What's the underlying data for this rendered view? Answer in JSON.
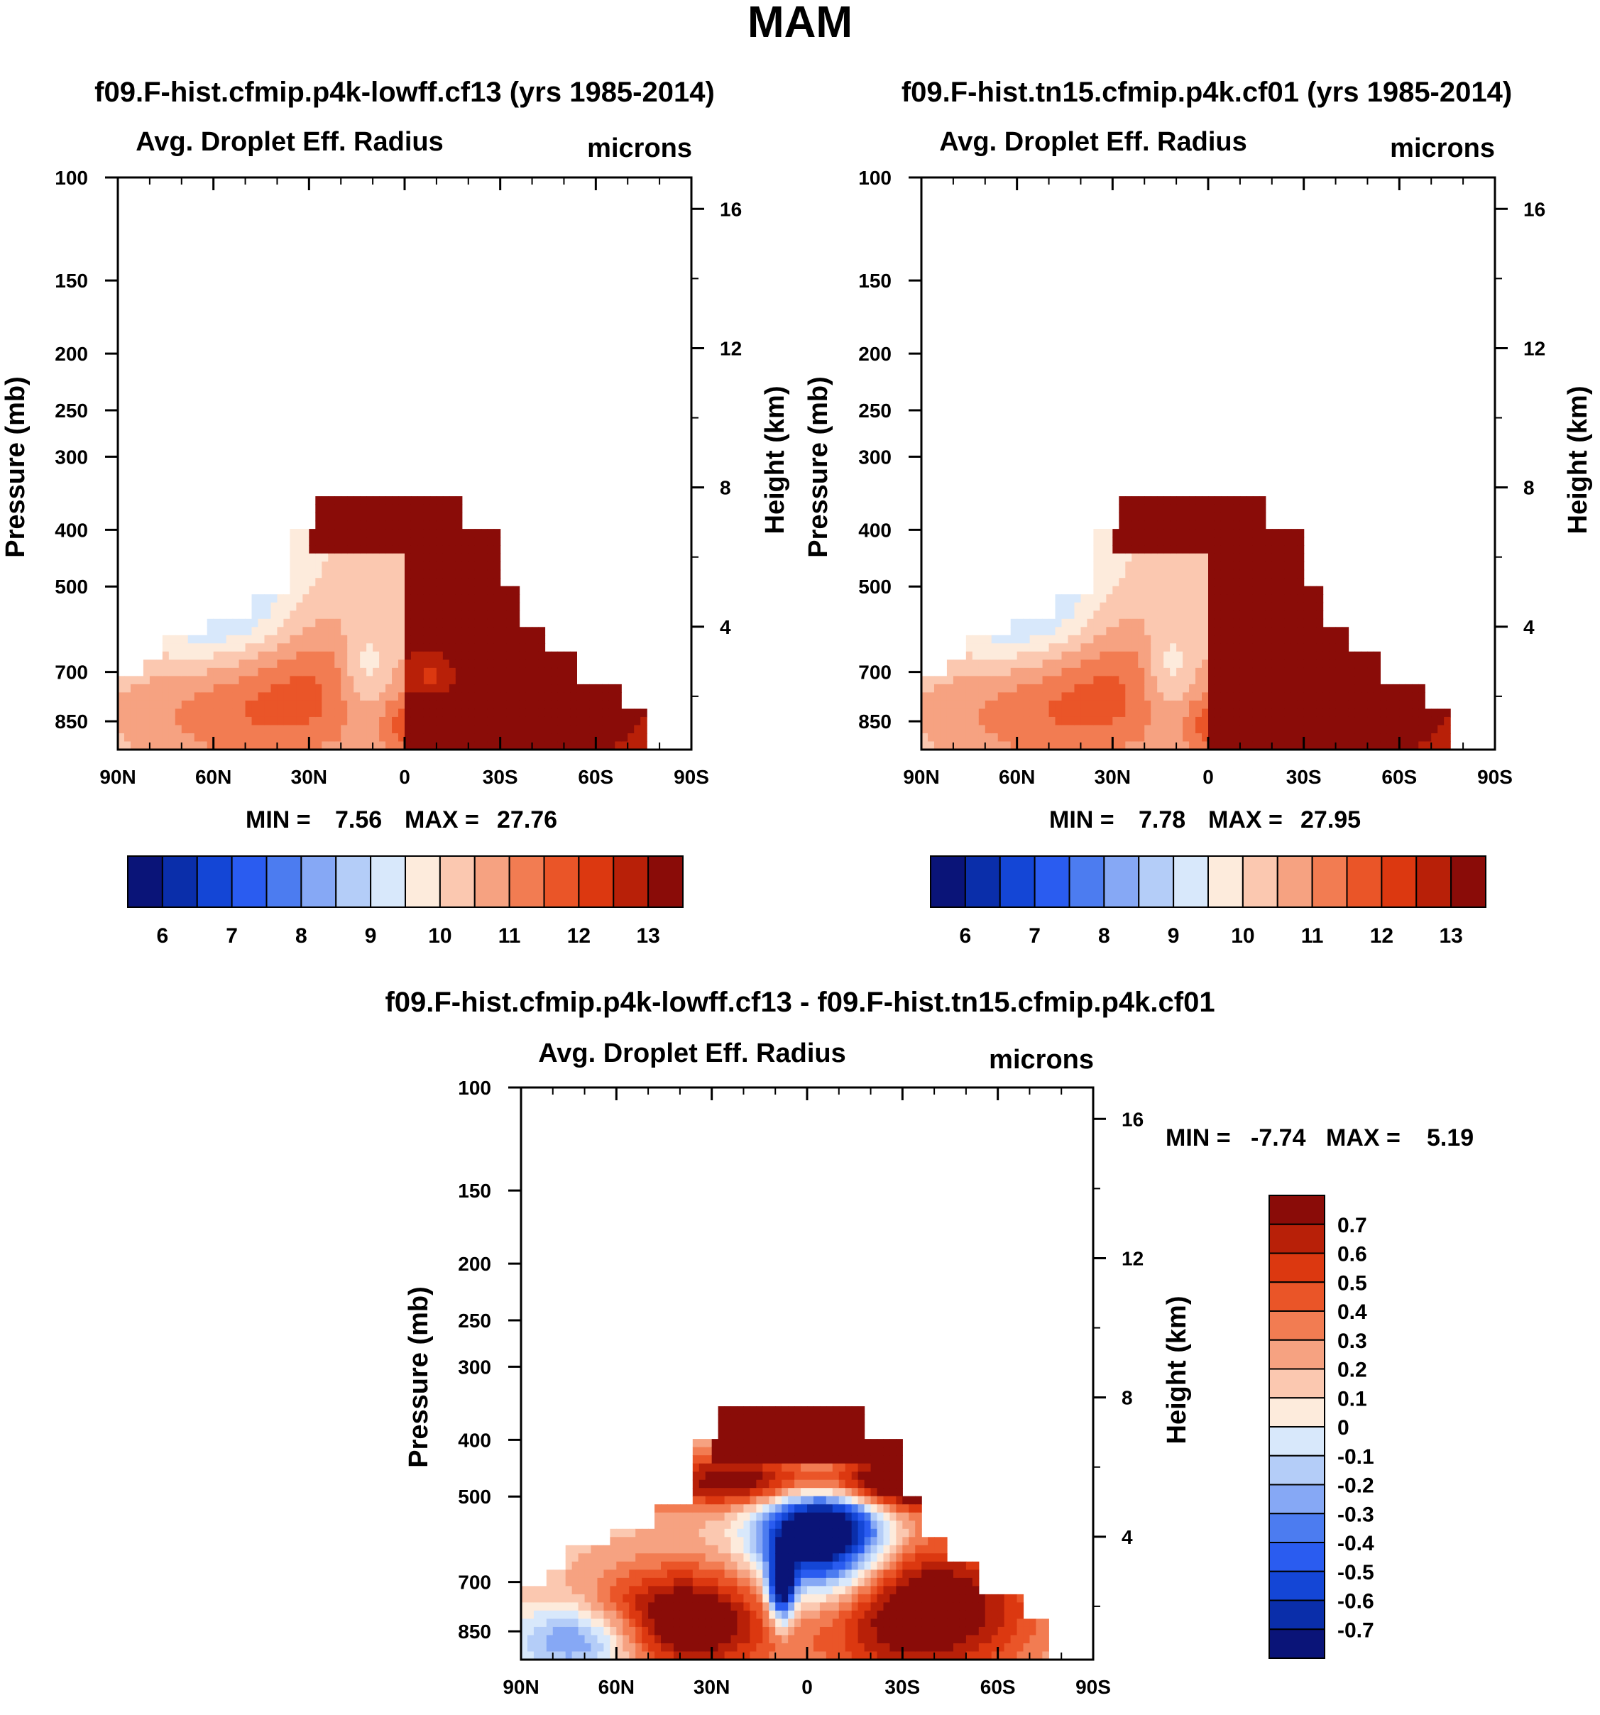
{
  "figure_title": "MAM",
  "chart_data": [
    {
      "type": "heatmap",
      "title": "f09.F-hist.cfmip.p4k-lowff.cf13 (yrs 1985-2014)",
      "subtitle": "Avg. Droplet Eff. Radius",
      "units": "microns",
      "ylabel": "Pressure (mb)",
      "ylabel_right": "Height (km)",
      "x_ticks": [
        "90N",
        "60N",
        "30N",
        "0",
        "30S",
        "60S",
        "90S"
      ],
      "y_ticks": [
        "100",
        "150",
        "200",
        "250",
        "300",
        "400",
        "500",
        "700",
        "850"
      ],
      "y_ticks_right": [
        "16",
        "12",
        "8",
        "4"
      ],
      "min_label": "MIN =",
      "min_value": "7.56",
      "max_label": "MAX =",
      "max_value": "27.76",
      "field": "mean",
      "colorbar": {
        "orientation": "horizontal",
        "colors": [
          "#0a1478",
          "#0a2eaa",
          "#1446d6",
          "#2a5cf0",
          "#4c7cf0",
          "#86a8f5",
          "#b4cdf8",
          "#d8e8fb",
          "#fdebdc",
          "#fbc8b0",
          "#f6a281",
          "#f27c52",
          "#ea5528",
          "#dc3810",
          "#b82008",
          "#8a0c08"
        ],
        "labels": [
          "6",
          "7",
          "8",
          "9",
          "10",
          "11",
          "12",
          "13"
        ]
      }
    },
    {
      "type": "heatmap",
      "title": "f09.F-hist.tn15.cfmip.p4k.cf01 (yrs 1985-2014)",
      "subtitle": "Avg. Droplet Eff. Radius",
      "units": "microns",
      "ylabel": "Pressure (mb)",
      "ylabel_right": "Height (km)",
      "x_ticks": [
        "90N",
        "60N",
        "30N",
        "0",
        "30S",
        "60S",
        "90S"
      ],
      "y_ticks": [
        "100",
        "150",
        "200",
        "250",
        "300",
        "400",
        "500",
        "700",
        "850"
      ],
      "y_ticks_right": [
        "16",
        "12",
        "8",
        "4"
      ],
      "min_label": "MIN =",
      "min_value": "7.78",
      "max_label": "MAX =",
      "max_value": "27.95",
      "field": "mean2",
      "colorbar": {
        "orientation": "horizontal",
        "colors": [
          "#0a1478",
          "#0a2eaa",
          "#1446d6",
          "#2a5cf0",
          "#4c7cf0",
          "#86a8f5",
          "#b4cdf8",
          "#d8e8fb",
          "#fdebdc",
          "#fbc8b0",
          "#f6a281",
          "#f27c52",
          "#ea5528",
          "#dc3810",
          "#b82008",
          "#8a0c08"
        ],
        "labels": [
          "6",
          "7",
          "8",
          "9",
          "10",
          "11",
          "12",
          "13"
        ]
      }
    },
    {
      "type": "heatmap",
      "title": "f09.F-hist.cfmip.p4k-lowff.cf13 - f09.F-hist.tn15.cfmip.p4k.cf01",
      "subtitle": "Avg. Droplet Eff. Radius",
      "units": "microns",
      "ylabel": "Pressure (mb)",
      "ylabel_right": "Height (km)",
      "x_ticks": [
        "90N",
        "60N",
        "30N",
        "0",
        "30S",
        "60S",
        "90S"
      ],
      "y_ticks": [
        "100",
        "150",
        "200",
        "250",
        "300",
        "400",
        "500",
        "700",
        "850"
      ],
      "y_ticks_right": [
        "16",
        "12",
        "8",
        "4"
      ],
      "min_label": "MIN =",
      "min_value": "-7.74",
      "max_label": "MAX =",
      "max_value": "5.19",
      "field": "diff",
      "colorbar": {
        "orientation": "vertical",
        "colors": [
          "#8a0c08",
          "#b82008",
          "#dc3810",
          "#ea5528",
          "#f27c52",
          "#f6a281",
          "#fbc8b0",
          "#fdebdc",
          "#d8e8fb",
          "#b4cdf8",
          "#86a8f5",
          "#4c7cf0",
          "#2a5cf0",
          "#1446d6",
          "#0a2eaa",
          "#0a1478"
        ],
        "labels": [
          "0.7",
          "0.6",
          "0.5",
          "0.4",
          "0.3",
          "0.2",
          "0.1",
          "0",
          "-0.1",
          "-0.2",
          "-0.3",
          "-0.4",
          "-0.5",
          "-0.6",
          "-0.7"
        ]
      }
    }
  ]
}
